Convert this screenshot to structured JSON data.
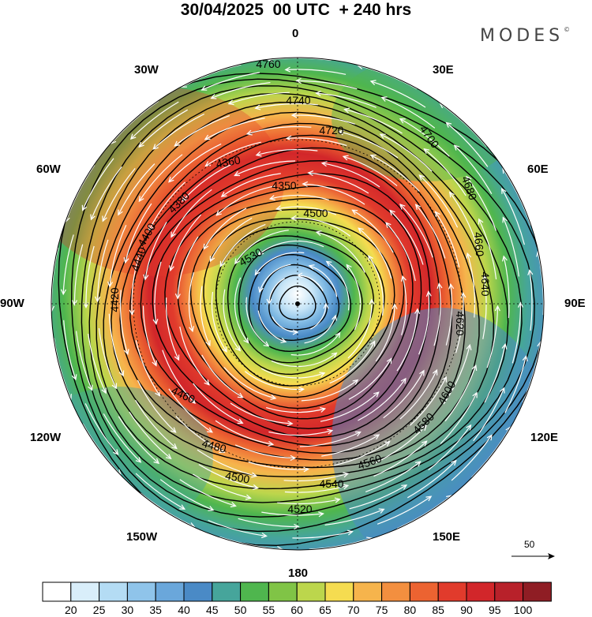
{
  "header": {
    "title": "30/04/2025  00 UTC  + 240 hrs",
    "brand": "MODES"
  },
  "map": {
    "projection": "north polar stereographic",
    "longitude_labels": [
      "0",
      "30E",
      "60E",
      "90E",
      "120E",
      "150E",
      "180",
      "150W",
      "120W",
      "90W",
      "60W",
      "30W"
    ],
    "contour_labels": [
      "4760",
      "4740",
      "4720",
      "4700",
      "4680",
      "4660",
      "4640",
      "4620",
      "4600",
      "4580",
      "4560",
      "4540",
      "4520",
      "4500",
      "4480",
      "4460",
      "4440",
      "4420",
      "4400",
      "4380",
      "4360",
      "4350",
      "4500",
      "4530"
    ],
    "wind_vectors": "white streamline arrows, cyclonic flow",
    "reference_vector": {
      "label": "50"
    }
  },
  "colorbar": {
    "labels": [
      "20",
      "25",
      "30",
      "35",
      "40",
      "45",
      "50",
      "55",
      "60",
      "65",
      "70",
      "75",
      "80",
      "85",
      "90",
      "95",
      "100"
    ],
    "colors": [
      "#ffffff",
      "#d9eefa",
      "#b4dcf4",
      "#8fc4ea",
      "#6aa7db",
      "#4a8ac6",
      "#46a59b",
      "#4fb64e",
      "#80c446",
      "#bcd64c",
      "#f5dc50",
      "#f6b44c",
      "#f38f3f",
      "#ec6331",
      "#e13b2c",
      "#d2262a",
      "#b8212a",
      "#8f1d24"
    ]
  }
}
